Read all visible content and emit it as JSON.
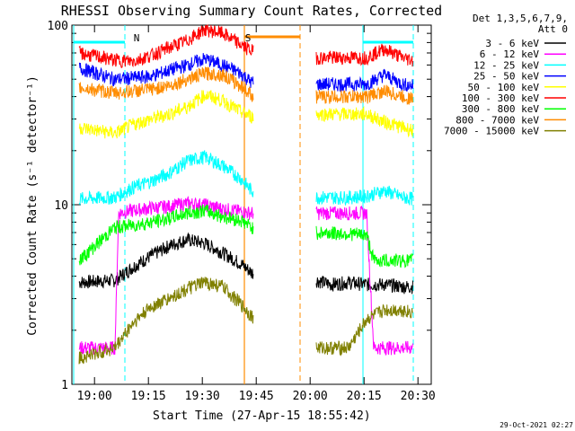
{
  "chart_data": {
    "type": "line",
    "title": "RHESSI Observing Summary Count Rates, Corrected",
    "xlabel": "Start Time (27-Apr-15 18:55:42)",
    "ylabel": "Corrected Count Rate (s⁻¹ detector⁻¹)",
    "y_scale": "log",
    "ylim": [
      1,
      100
    ],
    "xlim_minutes": [
      0,
      40
    ],
    "x_ticks": [
      {
        "label": "19:00",
        "minute": 4.3
      },
      {
        "label": "19:15",
        "minute": 19.3
      },
      {
        "label": "19:30",
        "minute": 34.3
      },
      {
        "label": "19:45",
        "minute": 49.3
      },
      {
        "label": "20:00",
        "minute": 64.3
      },
      {
        "label": "20:15",
        "minute": 79.3
      },
      {
        "label": "20:30",
        "minute": 94.3
      }
    ],
    "y_ticks": [
      {
        "label": "1",
        "value": 1
      },
      {
        "label": "10",
        "value": 10
      },
      {
        "label": "100",
        "value": 100
      }
    ],
    "detectors_label": "Det 1,3,5,6,7,9,",
    "attenuator_label": "Att 0",
    "flags": [
      {
        "label": "N",
        "minute": 16
      },
      {
        "label": "S",
        "minute": 47
      }
    ],
    "gap_minutes": [
      48.5,
      64.0
    ],
    "series": [
      {
        "name": "3 - 6 keV",
        "color": "#000000",
        "points": [
          [
            0,
            3.7
          ],
          [
            10,
            3.8
          ],
          [
            15,
            4.5
          ],
          [
            20,
            5.2
          ],
          [
            25,
            5.9
          ],
          [
            30,
            6.4
          ],
          [
            35,
            6.1
          ],
          [
            40,
            5.4
          ],
          [
            45,
            4.7
          ],
          [
            48,
            4.2
          ],
          [
            66,
            3.8
          ],
          [
            70,
            3.6
          ],
          [
            75,
            3.7
          ],
          [
            80,
            3.6
          ],
          [
            85,
            3.6
          ],
          [
            90,
            3.5
          ],
          [
            93,
            3.5
          ]
        ]
      },
      {
        "name": "6 - 12 keV",
        "color": "#ff00ff",
        "points": [
          [
            0,
            1.6
          ],
          [
            10,
            1.6
          ],
          [
            11,
            9.0
          ],
          [
            15,
            9.3
          ],
          [
            20,
            9.6
          ],
          [
            25,
            9.8
          ],
          [
            30,
            10.2
          ],
          [
            35,
            10.0
          ],
          [
            40,
            9.5
          ],
          [
            48,
            9.0
          ],
          [
            66,
            9.0
          ],
          [
            75,
            9.0
          ],
          [
            80,
            9.0
          ],
          [
            82,
            1.6
          ],
          [
            93,
            1.6
          ]
        ]
      },
      {
        "name": "12 - 25 keV",
        "color": "#00ffff",
        "points": [
          [
            0,
            10.8
          ],
          [
            10,
            11.0
          ],
          [
            15,
            12.5
          ],
          [
            20,
            13.5
          ],
          [
            25,
            15.0
          ],
          [
            30,
            17.5
          ],
          [
            35,
            18.5
          ],
          [
            40,
            16.5
          ],
          [
            45,
            14.0
          ],
          [
            48,
            12.0
          ],
          [
            66,
            11.0
          ],
          [
            75,
            11.0
          ],
          [
            80,
            11.2
          ],
          [
            85,
            12.0
          ],
          [
            90,
            11.0
          ],
          [
            93,
            10.8
          ]
        ]
      },
      {
        "name": "25 - 50 keV",
        "color": "#0000ff",
        "points": [
          [
            0,
            58
          ],
          [
            10,
            50
          ],
          [
            15,
            51
          ],
          [
            20,
            52
          ],
          [
            25,
            56
          ],
          [
            30,
            60
          ],
          [
            35,
            65
          ],
          [
            40,
            60
          ],
          [
            45,
            54
          ],
          [
            48,
            48
          ],
          [
            66,
            47
          ],
          [
            75,
            47
          ],
          [
            80,
            47
          ],
          [
            85,
            53
          ],
          [
            90,
            47
          ],
          [
            93,
            46
          ]
        ]
      },
      {
        "name": "50 - 100 keV",
        "color": "#ffff00",
        "points": [
          [
            0,
            27
          ],
          [
            10,
            25
          ],
          [
            15,
            28
          ],
          [
            20,
            30
          ],
          [
            25,
            32
          ],
          [
            30,
            35
          ],
          [
            35,
            41
          ],
          [
            40,
            38
          ],
          [
            45,
            33
          ],
          [
            48,
            31
          ],
          [
            66,
            32
          ],
          [
            75,
            32
          ],
          [
            80,
            32
          ],
          [
            85,
            29
          ],
          [
            90,
            27
          ],
          [
            93,
            26
          ]
        ]
      },
      {
        "name": "100 - 300 keV",
        "color": "#ff0000",
        "points": [
          [
            0,
            70
          ],
          [
            10,
            64
          ],
          [
            15,
            63
          ],
          [
            20,
            68
          ],
          [
            25,
            75
          ],
          [
            30,
            82
          ],
          [
            35,
            95
          ],
          [
            40,
            90
          ],
          [
            45,
            78
          ],
          [
            48,
            72
          ],
          [
            66,
            66
          ],
          [
            75,
            66
          ],
          [
            80,
            66
          ],
          [
            85,
            74
          ],
          [
            90,
            66
          ],
          [
            93,
            64
          ]
        ]
      },
      {
        "name": "300 - 800 keV",
        "color": "#00ff00",
        "points": [
          [
            0,
            4.9
          ],
          [
            10,
            7.5
          ],
          [
            15,
            7.7
          ],
          [
            20,
            8.0
          ],
          [
            25,
            8.4
          ],
          [
            30,
            9.0
          ],
          [
            35,
            9.3
          ],
          [
            40,
            8.6
          ],
          [
            45,
            8.2
          ],
          [
            48,
            7.5
          ],
          [
            66,
            7.0
          ],
          [
            75,
            6.9
          ],
          [
            80,
            6.8
          ],
          [
            82,
            4.9
          ],
          [
            93,
            4.9
          ]
        ]
      },
      {
        "name": "800 - 7000 keV",
        "color": "#ff8c00",
        "points": [
          [
            0,
            45
          ],
          [
            10,
            42
          ],
          [
            15,
            43
          ],
          [
            20,
            44
          ],
          [
            25,
            46
          ],
          [
            30,
            50
          ],
          [
            35,
            54
          ],
          [
            40,
            53
          ],
          [
            45,
            46
          ],
          [
            48,
            41
          ],
          [
            66,
            40
          ],
          [
            75,
            40
          ],
          [
            80,
            40
          ],
          [
            85,
            43
          ],
          [
            90,
            40
          ],
          [
            93,
            39
          ]
        ]
      },
      {
        "name": "7000 - 15000 keV",
        "color": "#808000",
        "points": [
          [
            0,
            1.4
          ],
          [
            10,
            1.6
          ],
          [
            15,
            2.2
          ],
          [
            20,
            2.7
          ],
          [
            25,
            3.0
          ],
          [
            30,
            3.4
          ],
          [
            35,
            3.7
          ],
          [
            40,
            3.5
          ],
          [
            45,
            2.8
          ],
          [
            48,
            2.4
          ],
          [
            66,
            1.6
          ],
          [
            75,
            1.6
          ],
          [
            80,
            2.3
          ],
          [
            85,
            2.6
          ],
          [
            90,
            2.6
          ],
          [
            93,
            2.5
          ]
        ]
      }
    ]
  },
  "footer": {
    "timestamp": "29-Oct-2021 02:27"
  }
}
